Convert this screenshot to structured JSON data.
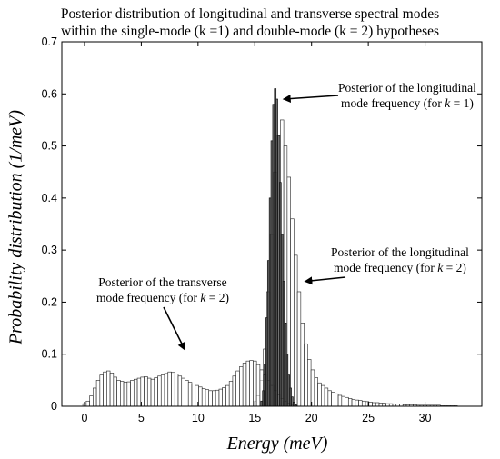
{
  "title": {
    "line1": "Posterior distribution of longitudinal and transverse spectral modes",
    "line2": "within the single-mode (k =1) and double-mode (k = 2) hypotheses"
  },
  "annotations": {
    "long_k1": {
      "line1": "Posterior of the longitudinal",
      "line2_pre": "mode frequency (for ",
      "k": "k",
      "line2_post": " = 1)"
    },
    "long_k2": {
      "line1": "Posterior of the longitudinal",
      "line2_pre": "mode frequency (for ",
      "k": "k",
      "line2_post": " = 2)"
    },
    "trans_k2": {
      "line1": "Posterior of the transverse",
      "line2_pre": "mode frequency (for ",
      "k": "k",
      "line2_post": " = 2)"
    }
  },
  "chart_data": {
    "type": "bar",
    "title": "Posterior distribution of longitudinal and transverse spectral modes within the single-mode (k =1) and double-mode (k = 2) hypotheses",
    "xlabel": "Energy (meV)",
    "ylabel": "Probability distribution (1/meV)",
    "xlim": [
      -2,
      35
    ],
    "ylim": [
      0,
      0.7
    ],
    "xticks": [
      0,
      5,
      10,
      15,
      20,
      25,
      30
    ],
    "yticks": [
      0,
      0.1,
      0.2,
      0.3,
      0.4,
      0.5,
      0.6,
      0.7
    ],
    "xtick_labels": [
      "0",
      "5",
      "10",
      "15",
      "20",
      "25",
      "30"
    ],
    "ytick_labels": [
      "0",
      "0.1",
      "0.2",
      "0.3",
      "0.4",
      "0.5",
      "0.6",
      "0.7"
    ],
    "grid": false,
    "series": [
      {
        "key": "long_k2",
        "style": "light",
        "x": [
          15.0,
          15.3,
          15.6,
          15.9,
          16.2,
          16.5,
          16.8,
          17.1,
          17.4,
          17.7,
          18.0,
          18.3,
          18.6,
          18.9,
          19.2,
          19.5,
          19.8,
          20.1,
          20.4,
          20.7,
          21.0,
          21.3,
          21.6,
          21.9,
          22.2,
          22.5,
          22.8,
          23.1,
          23.4,
          23.7,
          24.0,
          24.3,
          24.6,
          24.9,
          25.2,
          25.5,
          25.8,
          26.1,
          26.4,
          26.7,
          27.0,
          27.3,
          27.6,
          27.9,
          28.2,
          28.5,
          28.8,
          29.1,
          29.4,
          29.7,
          30.0,
          30.3,
          30.6,
          30.9,
          31.2,
          31.5,
          31.8,
          32.1,
          32.4,
          32.7
        ],
        "values": [
          0.01,
          0.02,
          0.05,
          0.11,
          0.22,
          0.33,
          0.45,
          0.52,
          0.55,
          0.5,
          0.44,
          0.36,
          0.29,
          0.22,
          0.16,
          0.12,
          0.09,
          0.07,
          0.055,
          0.045,
          0.04,
          0.035,
          0.03,
          0.027,
          0.024,
          0.021,
          0.019,
          0.017,
          0.015,
          0.013,
          0.012,
          0.011,
          0.01,
          0.009,
          0.008,
          0.007,
          0.007,
          0.006,
          0.006,
          0.005,
          0.005,
          0.004,
          0.004,
          0.004,
          0.003,
          0.003,
          0.003,
          0.003,
          0.002,
          0.002,
          0.002,
          0.002,
          0.002,
          0.002,
          0.002,
          0.001,
          0.001,
          0.001,
          0.001,
          0.001
        ]
      },
      {
        "key": "trans_k2",
        "style": "light",
        "x": [
          0.0,
          0.3,
          0.6,
          0.9,
          1.2,
          1.5,
          1.8,
          2.1,
          2.4,
          2.7,
          3.0,
          3.3,
          3.6,
          3.9,
          4.2,
          4.5,
          4.8,
          5.1,
          5.4,
          5.7,
          6.0,
          6.3,
          6.6,
          6.9,
          7.2,
          7.5,
          7.8,
          8.1,
          8.4,
          8.7,
          9.0,
          9.3,
          9.6,
          9.9,
          10.2,
          10.5,
          10.8,
          11.1,
          11.4,
          11.7,
          12.0,
          12.3,
          12.6,
          12.9,
          13.2,
          13.5,
          13.8,
          14.1,
          14.4,
          14.7,
          15.0,
          15.3,
          15.6,
          15.9,
          16.2,
          16.5,
          16.8,
          17.1,
          17.4,
          17.7,
          18.0,
          18.3,
          18.6
        ],
        "values": [
          0.005,
          0.01,
          0.02,
          0.035,
          0.05,
          0.06,
          0.066,
          0.068,
          0.064,
          0.056,
          0.05,
          0.048,
          0.046,
          0.047,
          0.05,
          0.052,
          0.054,
          0.056,
          0.057,
          0.054,
          0.052,
          0.055,
          0.058,
          0.06,
          0.063,
          0.066,
          0.065,
          0.062,
          0.058,
          0.054,
          0.05,
          0.046,
          0.043,
          0.04,
          0.037,
          0.034,
          0.032,
          0.03,
          0.03,
          0.031,
          0.033,
          0.036,
          0.04,
          0.048,
          0.058,
          0.068,
          0.076,
          0.083,
          0.087,
          0.088,
          0.087,
          0.08,
          0.07,
          0.06,
          0.05,
          0.04,
          0.03,
          0.022,
          0.015,
          0.01,
          0.006,
          0.003,
          0.001
        ]
      },
      {
        "key": "long_k1",
        "style": "dark",
        "x": [
          15.6,
          15.75,
          15.9,
          16.05,
          16.2,
          16.35,
          16.5,
          16.65,
          16.8,
          16.95,
          17.1,
          17.25,
          17.4,
          17.55,
          17.7,
          17.85,
          18.0,
          18.15,
          18.3,
          18.45,
          18.6
        ],
        "values": [
          0.01,
          0.03,
          0.08,
          0.17,
          0.28,
          0.4,
          0.51,
          0.58,
          0.61,
          0.59,
          0.52,
          0.43,
          0.33,
          0.24,
          0.16,
          0.1,
          0.06,
          0.035,
          0.018,
          0.008,
          0.003
        ]
      }
    ]
  }
}
